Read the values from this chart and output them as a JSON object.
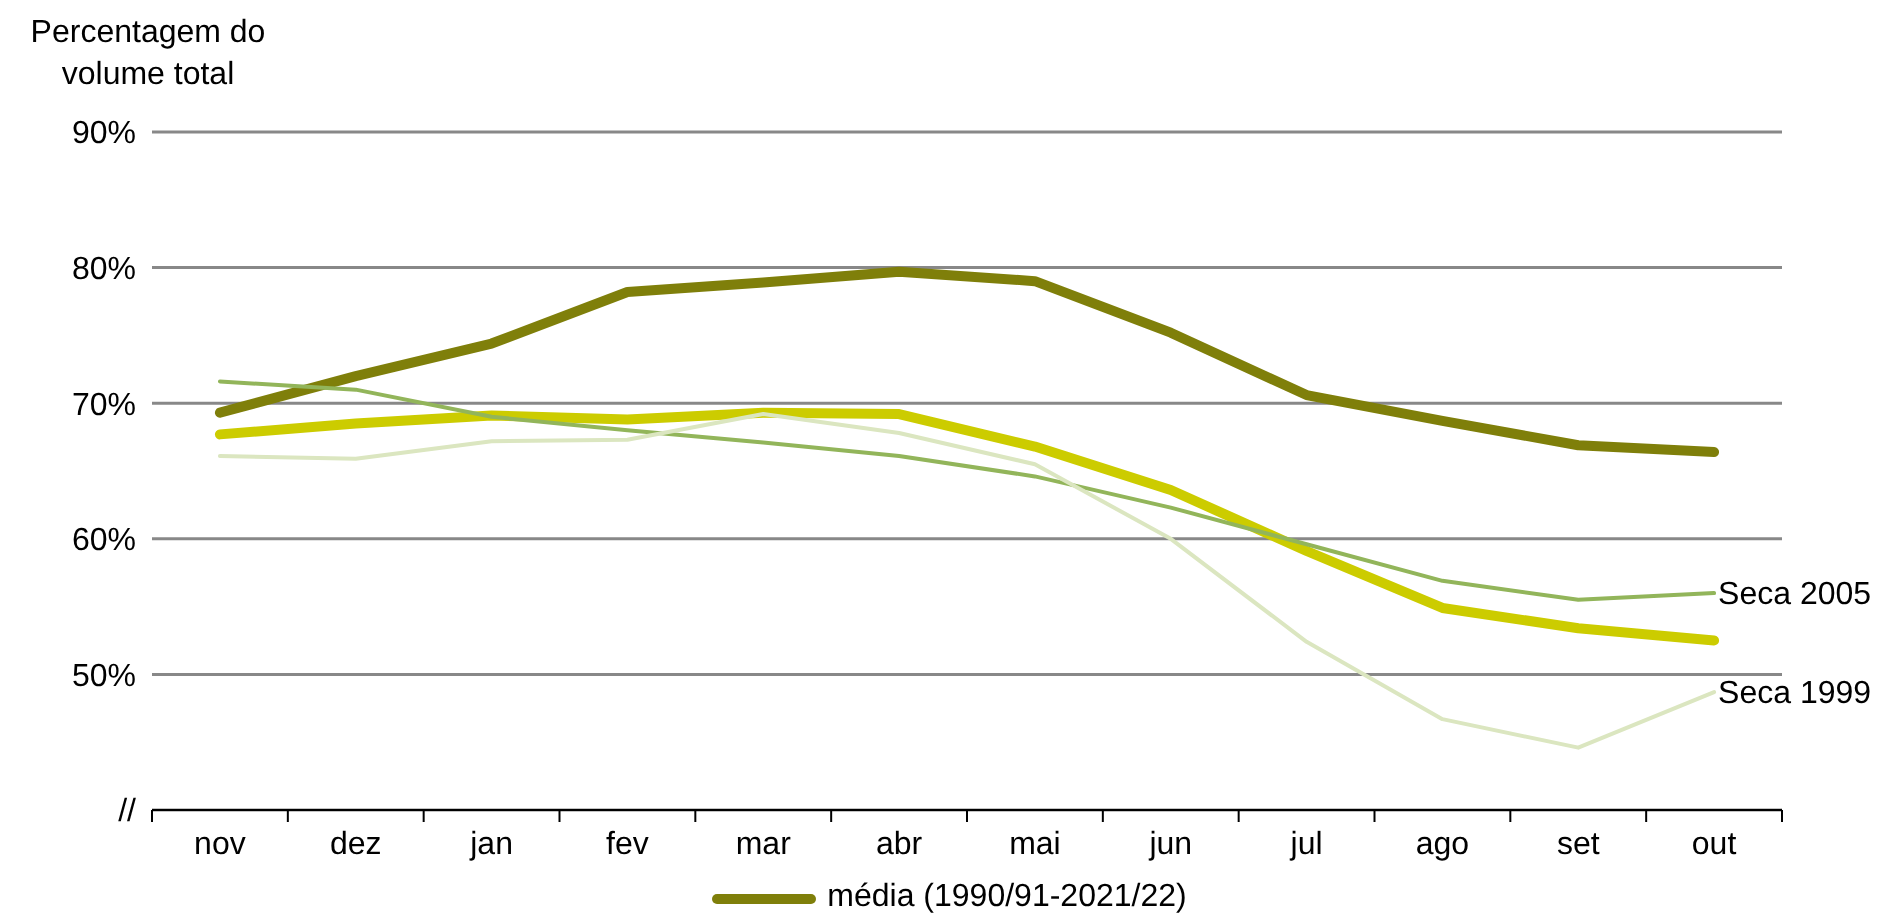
{
  "chart_data": {
    "type": "line",
    "ylabel": "Percentagem do volume total",
    "categories": [
      "nov",
      "dez",
      "jan",
      "fev",
      "mar",
      "abr",
      "mai",
      "jun",
      "jul",
      "ago",
      "set",
      "out"
    ],
    "series": [
      {
        "name": "média (1990/91-2021/22)",
        "color": "#7f7f0a",
        "values": [
          69.3,
          72.0,
          74.4,
          78.2,
          78.9,
          79.7,
          79.0,
          75.2,
          70.6,
          68.7,
          66.9,
          66.4
        ]
      },
      {
        "color": "#cccc00",
        "values": [
          67.7,
          68.5,
          69.1,
          68.8,
          69.3,
          69.2,
          66.8,
          63.6,
          59.1,
          54.9,
          53.4,
          52.5
        ]
      },
      {
        "color": "#92b55a",
        "values": [
          71.6,
          71.0,
          69.0,
          68.0,
          67.1,
          66.1,
          64.6,
          62.3,
          59.6,
          56.9,
          55.5,
          56.0
        ]
      },
      {
        "color": "#dbe6c0",
        "values": [
          66.1,
          65.9,
          67.2,
          67.3,
          69.2,
          67.8,
          65.5,
          60.0,
          52.4,
          46.7,
          44.6,
          48.7
        ]
      }
    ],
    "annotations": [
      {
        "text": "Seca 2005",
        "x": "out",
        "y": 56.0
      },
      {
        "text": "Seca 1999",
        "x": "out",
        "y": 48.7
      }
    ],
    "ylim": [
      40,
      90
    ],
    "yticks": [
      {
        "value": 40,
        "label": "//"
      },
      {
        "value": 50,
        "label": "50%"
      },
      {
        "value": 60,
        "label": "60%"
      },
      {
        "value": 70,
        "label": "70%"
      },
      {
        "value": 80,
        "label": "80%"
      },
      {
        "value": 90,
        "label": "90%"
      }
    ],
    "grid": "y",
    "legend": "bottom",
    "marker": "none",
    "line_style": "solid"
  }
}
